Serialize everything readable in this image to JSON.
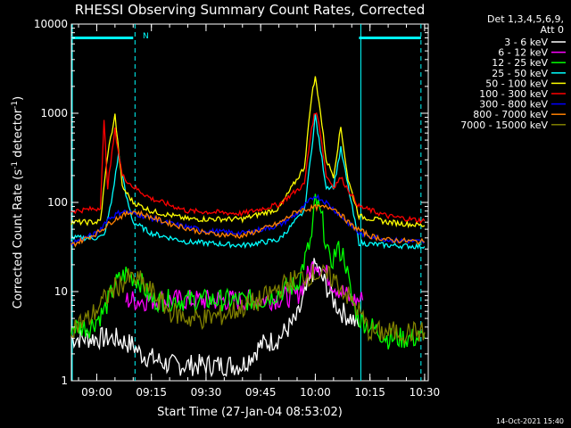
{
  "chart_data": {
    "type": "line",
    "title": "RHESSI Observing Summary Count Rates, Corrected",
    "xlabel": "Start Time (27-Jan-04 08:53:02)",
    "ylabel_main": "Corrected Count Rate (s",
    "ylabel_sup1": "-1",
    "ylabel_mid": " detector",
    "ylabel_sup2": "-1",
    "ylabel_end": ")",
    "y_scale": "log",
    "ylim": [
      1,
      10000
    ],
    "xlim": [
      "08:53:02",
      "10:31:00"
    ],
    "x_ticks": [
      "09:00",
      "09:15",
      "09:30",
      "09:45",
      "10:00",
      "10:15",
      "10:30"
    ],
    "y_ticks": [
      "1",
      "10",
      "100",
      "1000",
      "10000"
    ],
    "legend_header_line1": "Det 1,3,4,5,6,9,",
    "legend_header_line2": "Att 0",
    "legend_placement": "right",
    "footer_timestamp": "14-Oct-2021 15:40",
    "attenuator_marker": "N",
    "series": [
      {
        "name": "3 - 6 keV",
        "color": "#ffffff",
        "x": [
          "08:53",
          "09:00",
          "09:03",
          "09:05",
          "09:10",
          "09:12",
          "09:20",
          "09:30",
          "09:40",
          "09:45",
          "09:50",
          "09:55",
          "10:00",
          "10:05",
          "10:07",
          "10:10",
          "10:12"
        ],
        "y": [
          3,
          3,
          3,
          3,
          2.5,
          2,
          1.5,
          1.5,
          1.5,
          2.5,
          3,
          5,
          20,
          8,
          6,
          5,
          4
        ]
      },
      {
        "name": "6 - 12 keV",
        "color": "#ff00ff",
        "x": [
          "09:08",
          "09:15",
          "09:20",
          "09:30",
          "09:45",
          "09:55",
          "10:00",
          "10:02",
          "10:05",
          "10:10",
          "10:13"
        ],
        "y": [
          8,
          8,
          8,
          8,
          8,
          9,
          22,
          18,
          12,
          8,
          8
        ]
      },
      {
        "name": "12 - 25 keV",
        "color": "#00ff00",
        "x": [
          "08:53",
          "08:58",
          "09:02",
          "09:05",
          "09:08",
          "09:12",
          "09:15",
          "09:20",
          "09:30",
          "09:45",
          "09:55",
          "09:59",
          "10:00",
          "10:02",
          "10:04",
          "10:06",
          "10:08",
          "10:10",
          "10:12",
          "10:20",
          "10:30"
        ],
        "y": [
          4,
          4,
          6,
          12,
          16,
          13,
          8,
          8,
          8,
          8,
          12,
          40,
          110,
          60,
          20,
          30,
          25,
          8,
          5,
          3,
          3
        ]
      },
      {
        "name": "25 - 50 keV",
        "color": "#00ffff",
        "x": [
          "08:53",
          "09:00",
          "09:02",
          "09:04",
          "09:06",
          "09:08",
          "09:10",
          "09:15",
          "09:25",
          "09:40",
          "09:50",
          "09:57",
          "09:59",
          "10:00",
          "10:01",
          "10:03",
          "10:05",
          "10:07",
          "10:09",
          "10:12",
          "10:20",
          "10:30"
        ],
        "y": [
          40,
          40,
          42,
          100,
          350,
          120,
          60,
          45,
          36,
          33,
          38,
          80,
          400,
          950,
          500,
          150,
          150,
          400,
          150,
          35,
          33,
          32
        ]
      },
      {
        "name": "50 - 100 keV",
        "color": "#ffff00",
        "x": [
          "08:53",
          "09:00",
          "09:01",
          "09:03",
          "09:05",
          "09:07",
          "09:10",
          "09:15",
          "09:25",
          "09:40",
          "09:50",
          "09:57",
          "09:59",
          "10:00",
          "10:01",
          "10:03",
          "10:05",
          "10:07",
          "10:09",
          "10:12",
          "10:20",
          "10:30"
        ],
        "y": [
          60,
          60,
          62,
          350,
          950,
          150,
          100,
          80,
          65,
          65,
          85,
          250,
          1600,
          2500,
          1400,
          300,
          200,
          700,
          180,
          70,
          60,
          55
        ]
      },
      {
        "name": "100 - 300 keV",
        "color": "#ff0000",
        "x": [
          "08:53",
          "09:00",
          "09:01",
          "09:02",
          "09:03",
          "09:05",
          "09:07",
          "09:10",
          "09:15",
          "09:25",
          "09:40",
          "09:50",
          "09:57",
          "09:59",
          "10:00",
          "10:01",
          "10:03",
          "10:05",
          "10:07",
          "10:09",
          "10:12",
          "10:20",
          "10:30"
        ],
        "y": [
          80,
          85,
          90,
          800,
          150,
          650,
          200,
          150,
          110,
          80,
          75,
          95,
          160,
          700,
          1050,
          800,
          200,
          150,
          190,
          140,
          90,
          70,
          62
        ]
      },
      {
        "name": "300 - 800 keV",
        "color": "#0000ff",
        "x": [
          "08:53",
          "09:00",
          "09:03",
          "09:07",
          "09:12",
          "09:20",
          "09:30",
          "09:40",
          "09:50",
          "09:55",
          "10:00",
          "10:03",
          "10:08",
          "10:12",
          "10:20",
          "10:30"
        ],
        "y": [
          35,
          45,
          65,
          80,
          72,
          58,
          48,
          45,
          55,
          75,
          120,
          100,
          65,
          45,
          38,
          36
        ]
      },
      {
        "name": "800 - 7000 keV",
        "color": "#ff8000",
        "x": [
          "08:53",
          "09:00",
          "09:05",
          "09:10",
          "09:20",
          "09:30",
          "09:40",
          "09:50",
          "09:55",
          "10:00",
          "10:05",
          "10:10",
          "10:15",
          "10:20",
          "10:30"
        ],
        "y": [
          33,
          45,
          65,
          80,
          58,
          45,
          42,
          58,
          80,
          88,
          88,
          55,
          42,
          38,
          36
        ]
      },
      {
        "name": "7000 - 15000 keV",
        "color": "#808000",
        "x": [
          "08:53",
          "08:58",
          "09:02",
          "09:05",
          "09:09",
          "09:12",
          "09:15",
          "09:20",
          "09:25",
          "09:30",
          "09:35",
          "09:45",
          "09:50",
          "09:55",
          "10:00",
          "10:05",
          "10:08",
          "10:12",
          "10:15",
          "10:20",
          "10:30"
        ],
        "y": [
          4,
          5,
          8,
          11,
          14,
          13,
          10,
          6,
          5,
          5,
          5.5,
          8,
          11,
          14,
          16,
          14,
          10,
          6,
          3.5,
          3.5,
          3.5
        ]
      }
    ],
    "vlines_cyan": [
      "08:53:02",
      "09:10:30",
      "10:12:30",
      "10:29:00"
    ],
    "vlines_cyan_style": [
      "solid",
      "dashed",
      "solid",
      "dashed"
    ],
    "hbars_cyan": [
      {
        "from": "08:53",
        "to": "09:10"
      },
      {
        "from": "10:12",
        "to": "10:29"
      }
    ],
    "hbar_level": 7000
  }
}
